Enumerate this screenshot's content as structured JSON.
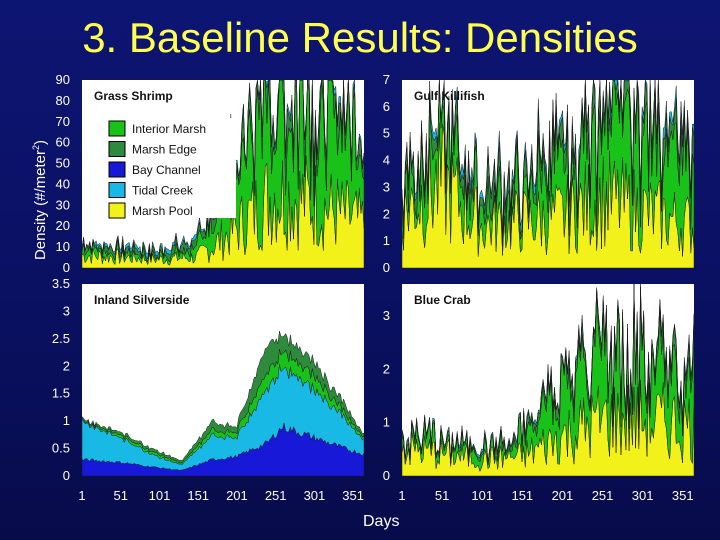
{
  "slide_title": "3. Baseline Results: Densities",
  "ylabel_prefix": "Density (#/meter",
  "ylabel_sup": "2",
  "ylabel_suffix": ")",
  "xlabel": "Days",
  "colors": {
    "Interior Marsh": "#19c219",
    "Marsh Edge": "#2e8b3e",
    "Bay Channel": "#1818d8",
    "Tidal Creek": "#19b9e6",
    "Marsh Pool": "#f2f21a"
  },
  "chart_data": [
    {
      "type": "area",
      "title": "Grass Shrimp",
      "x_ticks": [],
      "y_ticks": [
        "0",
        "10",
        "20",
        "30",
        "40",
        "50",
        "60",
        "70",
        "80",
        "90"
      ],
      "ylim": [
        0,
        90
      ],
      "xlim": [
        1,
        365
      ],
      "legend": [
        "Interior Marsh",
        "Marsh Edge",
        "Bay Channel",
        "Tidal Creek",
        "Marsh Pool"
      ],
      "legend_position": "top-center",
      "series": [
        {
          "name": "Marsh Pool",
          "values_profile": [
            [
              1,
              6
            ],
            [
              100,
              4
            ],
            [
              150,
              5
            ],
            [
              200,
              18
            ],
            [
              250,
              35
            ],
            [
              300,
              30
            ],
            [
              365,
              20
            ]
          ]
        },
        {
          "name": "Interior Marsh",
          "values_profile": [
            [
              1,
              3
            ],
            [
              100,
              2
            ],
            [
              150,
              4
            ],
            [
              200,
              25
            ],
            [
              250,
              55
            ],
            [
              300,
              45
            ],
            [
              365,
              35
            ]
          ]
        },
        {
          "name": "Marsh Edge",
          "values_profile": [
            [
              1,
              2
            ],
            [
              100,
              2
            ],
            [
              150,
              3
            ],
            [
              200,
              8
            ],
            [
              250,
              10
            ],
            [
              300,
              10
            ],
            [
              365,
              8
            ]
          ]
        },
        {
          "name": "Tidal Creek",
          "values_profile": [
            [
              1,
              1
            ],
            [
              365,
              2
            ]
          ]
        }
      ]
    },
    {
      "type": "area",
      "title": "Gulf Killifish",
      "x_ticks": [],
      "y_ticks": [
        "0",
        "1",
        "2",
        "3",
        "4",
        "5",
        "6",
        "7"
      ],
      "ylim": [
        0,
        7
      ],
      "xlim": [
        1,
        365
      ],
      "series": [
        {
          "name": "Marsh Pool",
          "values_profile": [
            [
              1,
              2
            ],
            [
              50,
              3
            ],
            [
              100,
              1.5
            ],
            [
              200,
              1.8
            ],
            [
              250,
              2.5
            ],
            [
              300,
              2
            ],
            [
              365,
              1.5
            ]
          ]
        },
        {
          "name": "Interior Marsh",
          "values_profile": [
            [
              1,
              1
            ],
            [
              50,
              1.5
            ],
            [
              100,
              0.8
            ],
            [
              200,
              1.5
            ],
            [
              250,
              3
            ],
            [
              300,
              2.5
            ],
            [
              365,
              2
            ]
          ]
        },
        {
          "name": "Marsh Edge",
          "values_profile": [
            [
              1,
              0.5
            ],
            [
              365,
              0.7
            ]
          ]
        },
        {
          "name": "Tidal Creek",
          "values_profile": [
            [
              1,
              0.2
            ],
            [
              365,
              0.3
            ]
          ]
        }
      ]
    },
    {
      "type": "area",
      "title": "Inland Silverside",
      "x_ticks": [
        "1",
        "51",
        "101",
        "151",
        "201",
        "251",
        "301",
        "351"
      ],
      "y_ticks": [
        "0",
        "0.5",
        "1",
        "1.5",
        "2",
        "2.5",
        "3",
        "3.5"
      ],
      "ylim": [
        0,
        3.5
      ],
      "xlim": [
        1,
        365
      ],
      "series": [
        {
          "name": "Bay Channel",
          "values_profile": [
            [
              1,
              0.3
            ],
            [
              50,
              0.25
            ],
            [
              100,
              0.15
            ],
            [
              130,
              0.1
            ],
            [
              170,
              0.3
            ],
            [
              200,
              0.35
            ],
            [
              240,
              0.6
            ],
            [
              260,
              0.9
            ],
            [
              300,
              0.7
            ],
            [
              340,
              0.5
            ],
            [
              365,
              0.4
            ]
          ]
        },
        {
          "name": "Tidal Creek",
          "values_profile": [
            [
              1,
              0.7
            ],
            [
              50,
              0.45
            ],
            [
              100,
              0.2
            ],
            [
              130,
              0.1
            ],
            [
              170,
              0.45
            ],
            [
              200,
              0.35
            ],
            [
              240,
              1.0
            ],
            [
              260,
              1.1
            ],
            [
              300,
              0.9
            ],
            [
              340,
              0.55
            ],
            [
              365,
              0.25
            ]
          ]
        },
        {
          "name": "Interior Marsh",
          "values_profile": [
            [
              1,
              0.02
            ],
            [
              50,
              0.05
            ],
            [
              100,
              0.05
            ],
            [
              130,
              0.03
            ],
            [
              170,
              0.1
            ],
            [
              200,
              0.1
            ],
            [
              240,
              0.3
            ],
            [
              260,
              0.3
            ],
            [
              300,
              0.25
            ],
            [
              340,
              0.1
            ],
            [
              365,
              0.05
            ]
          ]
        },
        {
          "name": "Marsh Edge",
          "values_profile": [
            [
              1,
              0.03
            ],
            [
              50,
              0.05
            ],
            [
              100,
              0.05
            ],
            [
              130,
              0.04
            ],
            [
              170,
              0.15
            ],
            [
              200,
              0.1
            ],
            [
              240,
              0.5
            ],
            [
              260,
              0.3
            ],
            [
              300,
              0.25
            ],
            [
              340,
              0.15
            ],
            [
              365,
              0.05
            ]
          ]
        }
      ]
    },
    {
      "type": "area",
      "title": "Blue Crab",
      "x_ticks": [
        "1",
        "51",
        "101",
        "151",
        "201",
        "251",
        "301",
        "351"
      ],
      "y_ticks": [
        "0",
        "1",
        "2",
        "3"
      ],
      "ylim": [
        0,
        3.6
      ],
      "xlim": [
        1,
        365
      ],
      "series": [
        {
          "name": "Marsh Pool",
          "values_profile": [
            [
              1,
              0.5
            ],
            [
              50,
              0.4
            ],
            [
              100,
              0.3
            ],
            [
              150,
              0.35
            ],
            [
              200,
              0.7
            ],
            [
              250,
              1.0
            ],
            [
              300,
              1.0
            ],
            [
              365,
              0.9
            ]
          ]
        },
        {
          "name": "Interior Marsh",
          "values_profile": [
            [
              1,
              0.2
            ],
            [
              50,
              0.2
            ],
            [
              100,
              0.15
            ],
            [
              150,
              0.3
            ],
            [
              200,
              0.8
            ],
            [
              250,
              1.2
            ],
            [
              300,
              1.1
            ],
            [
              365,
              1.0
            ]
          ]
        },
        {
          "name": "Marsh Edge",
          "values_profile": [
            [
              1,
              0.05
            ],
            [
              100,
              0.05
            ],
            [
              200,
              0.15
            ],
            [
              365,
              0.2
            ]
          ]
        },
        {
          "name": "Tidal Creek",
          "values_profile": [
            [
              1,
              0.03
            ],
            [
              365,
              0.05
            ]
          ]
        }
      ]
    }
  ]
}
